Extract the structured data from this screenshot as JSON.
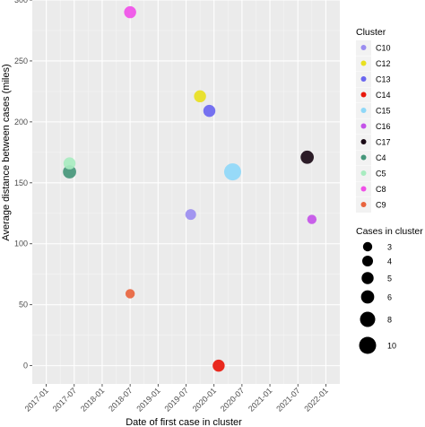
{
  "chart_data": {
    "type": "scatter",
    "title": "",
    "xlabel": "Date of first case in cluster",
    "ylabel": "Average distance between cases (miles)",
    "x_type": "date",
    "xlim": [
      "2016-10-01",
      "2022-04-01"
    ],
    "ylim": [
      -15,
      300
    ],
    "x_ticks": [
      "2017-01",
      "2017-07",
      "2018-01",
      "2018-07",
      "2019-01",
      "2019-07",
      "2020-01",
      "2020-07",
      "2021-01",
      "2021-07",
      "2022-01"
    ],
    "y_ticks": [
      0,
      50,
      100,
      150,
      200,
      250,
      300
    ],
    "grid": true,
    "legend_placement": "right",
    "series": [
      {
        "name": "C10",
        "color": "#9b8df0",
        "points": [
          {
            "x": "2019-08",
            "y": 124,
            "cases": 4
          }
        ]
      },
      {
        "name": "C12",
        "color": "#e8e020",
        "points": [
          {
            "x": "2019-10",
            "y": 221,
            "cases": 5
          }
        ]
      },
      {
        "name": "C13",
        "color": "#6a66f0",
        "points": [
          {
            "x": "2019-12",
            "y": 209,
            "cases": 5
          }
        ]
      },
      {
        "name": "C14",
        "color": "#e8180c",
        "points": [
          {
            "x": "2020-02",
            "y": 0,
            "cases": 5
          }
        ]
      },
      {
        "name": "C15",
        "color": "#8fd8f8",
        "points": [
          {
            "x": "2020-05",
            "y": 159,
            "cases": 10
          }
        ]
      },
      {
        "name": "C16",
        "color": "#c452e8",
        "points": [
          {
            "x": "2021-10",
            "y": 120,
            "cases": 3
          }
        ]
      },
      {
        "name": "C17",
        "color": "#1a0a16",
        "points": [
          {
            "x": "2021-09",
            "y": 171,
            "cases": 6
          }
        ]
      },
      {
        "name": "C4",
        "color": "#45967a",
        "points": [
          {
            "x": "2017-06",
            "y": 159,
            "cases": 6
          }
        ]
      },
      {
        "name": "C5",
        "color": "#a8ecc0",
        "points": [
          {
            "x": "2017-06",
            "y": 166,
            "cases": 5
          }
        ]
      },
      {
        "name": "C8",
        "color": "#f050e8",
        "points": [
          {
            "x": "2018-07",
            "y": 290,
            "cases": 5
          }
        ]
      },
      {
        "name": "C9",
        "color": "#e8643e",
        "points": [
          {
            "x": "2018-07",
            "y": 59,
            "cases": 3
          }
        ]
      }
    ],
    "legend_colour": {
      "title": "Cluster",
      "entries": [
        "C10",
        "C12",
        "C13",
        "C14",
        "C15",
        "C16",
        "C17",
        "C4",
        "C5",
        "C8",
        "C9"
      ]
    },
    "legend_size": {
      "title": "Cases in cluster",
      "entries": [
        3,
        4,
        5,
        6,
        8,
        10
      ]
    }
  }
}
